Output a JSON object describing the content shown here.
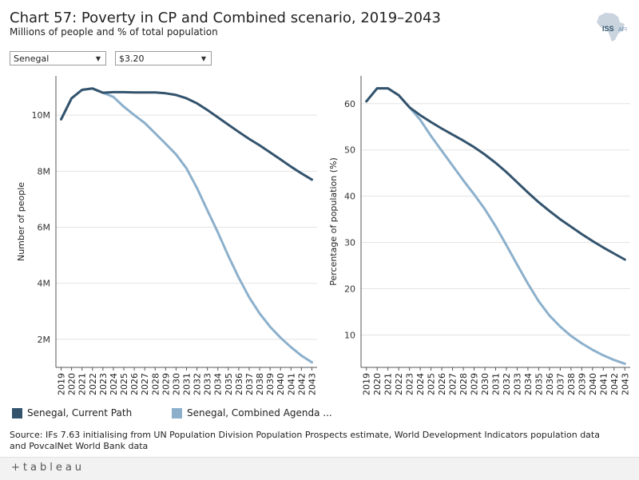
{
  "title": "Chart 57: Poverty in CP and Combined scenario, 2019–2043",
  "subtitle": "Millions of people and % of total population",
  "logo": {
    "text_main": "ISS",
    "text_sub": "AFI"
  },
  "filters": {
    "country": "Senegal",
    "threshold": "$3.20"
  },
  "legend": [
    {
      "label": "Senegal, Current Path",
      "color": "#33536d"
    },
    {
      "label": "Senegal, Combined Agenda ...",
      "color": "#8cb0cc"
    }
  ],
  "source": "Source: IFs 7.63 initialising from UN Population Division Population Prospects estimate, World Development Indicators population data and PovcalNet World Bank data",
  "footer": {
    "brand": "+tableau"
  },
  "chart_data": [
    {
      "type": "line",
      "ylabel": "Number of people",
      "xlabel": "",
      "ylim": [
        1.0,
        11.4
      ],
      "yticks": [
        2,
        4,
        6,
        8,
        10
      ],
      "yticklabels": [
        "2M",
        "4M",
        "6M",
        "8M",
        "10M"
      ],
      "categories": [
        "2019",
        "2020",
        "2021",
        "2022",
        "2023",
        "2024",
        "2025",
        "2026",
        "2027",
        "2028",
        "2029",
        "2030",
        "2031",
        "2032",
        "2033",
        "2034",
        "2035",
        "2036",
        "2037",
        "2038",
        "2039",
        "2040",
        "2041",
        "2042",
        "2043"
      ],
      "series": [
        {
          "name": "Senegal, Current Path",
          "color": "#33536d",
          "values": [
            9.85,
            10.6,
            10.9,
            10.95,
            10.8,
            10.82,
            10.82,
            10.81,
            10.81,
            10.81,
            10.78,
            10.72,
            10.6,
            10.42,
            10.18,
            9.92,
            9.66,
            9.4,
            9.15,
            8.92,
            8.67,
            8.42,
            8.16,
            7.92,
            7.7
          ]
        },
        {
          "name": "Senegal, Combined Agenda ...",
          "color": "#8cb0cc",
          "values": [
            9.85,
            10.6,
            10.9,
            10.95,
            10.8,
            10.65,
            10.3,
            10.0,
            9.72,
            9.35,
            8.98,
            8.6,
            8.1,
            7.4,
            6.6,
            5.82,
            4.98,
            4.2,
            3.5,
            2.92,
            2.45,
            2.06,
            1.72,
            1.42,
            1.18
          ]
        }
      ]
    },
    {
      "type": "line",
      "ylabel": "Percentage of population (%)",
      "xlabel": "",
      "ylim": [
        3,
        66
      ],
      "yticks": [
        10,
        20,
        30,
        40,
        50,
        60
      ],
      "yticklabels": [
        "10",
        "20",
        "30",
        "40",
        "50",
        "60"
      ],
      "categories": [
        "2019",
        "2020",
        "2021",
        "2022",
        "2023",
        "2024",
        "2025",
        "2026",
        "2027",
        "2028",
        "2029",
        "2030",
        "2031",
        "2032",
        "2033",
        "2034",
        "2035",
        "2036",
        "2037",
        "2038",
        "2039",
        "2040",
        "2041",
        "2042",
        "2043"
      ],
      "series": [
        {
          "name": "Senegal, Current Path",
          "color": "#33536d",
          "values": [
            60.5,
            63.3,
            63.3,
            61.8,
            59.2,
            57.5,
            56.0,
            54.6,
            53.3,
            52.0,
            50.6,
            49.0,
            47.2,
            45.2,
            43.0,
            40.8,
            38.7,
            36.8,
            35.0,
            33.4,
            31.8,
            30.3,
            28.9,
            27.6,
            26.3
          ]
        },
        {
          "name": "Senegal, Combined Agenda ...",
          "color": "#8cb0cc",
          "values": [
            60.5,
            63.3,
            63.3,
            61.8,
            59.2,
            56.5,
            53.0,
            49.8,
            46.6,
            43.4,
            40.4,
            37.2,
            33.5,
            29.4,
            25.2,
            21.1,
            17.3,
            14.2,
            11.8,
            9.8,
            8.2,
            6.8,
            5.6,
            4.6,
            3.8
          ]
        }
      ]
    }
  ]
}
